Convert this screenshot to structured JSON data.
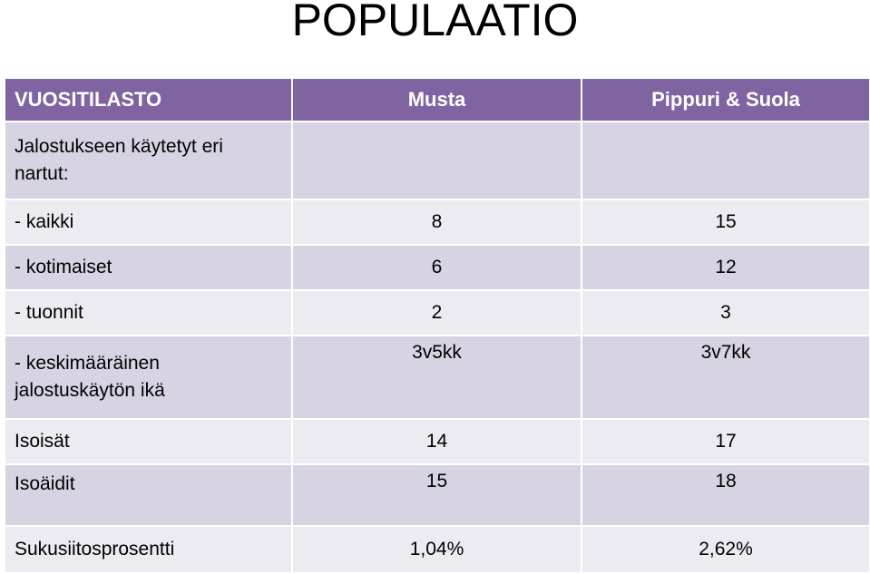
{
  "title": "POPULAATIO",
  "table": {
    "headers": [
      "VUOSITILASTO",
      "Musta",
      "Pippuri & Suola"
    ],
    "rows": [
      {
        "label": "Jalostukseen käytetyt eri nartut:",
        "musta": "",
        "pippuri_suola": ""
      },
      {
        "label": "- kaikki",
        "musta": "8",
        "pippuri_suola": "15"
      },
      {
        "label": "- kotimaiset",
        "musta": "6",
        "pippuri_suola": "12"
      },
      {
        "label": "- tuonnit",
        "musta": "2",
        "pippuri_suola": "3"
      },
      {
        "label": "- keskimääräinen jalostuskäytön ikä",
        "musta": "3v5kk",
        "pippuri_suola": "3v7kk"
      },
      {
        "label": "Isoisät",
        "musta": "14",
        "pippuri_suola": "17"
      },
      {
        "label": "Isoäidit",
        "musta": "15",
        "pippuri_suola": "18"
      },
      {
        "label": "Sukusiitosprosentti",
        "musta": "1,04%",
        "pippuri_suola": "2,62%"
      }
    ]
  },
  "colors": {
    "header_bg": "#8064a2",
    "row_odd_bg": "#d8d3e3",
    "row_even_bg": "#ecebf2"
  }
}
